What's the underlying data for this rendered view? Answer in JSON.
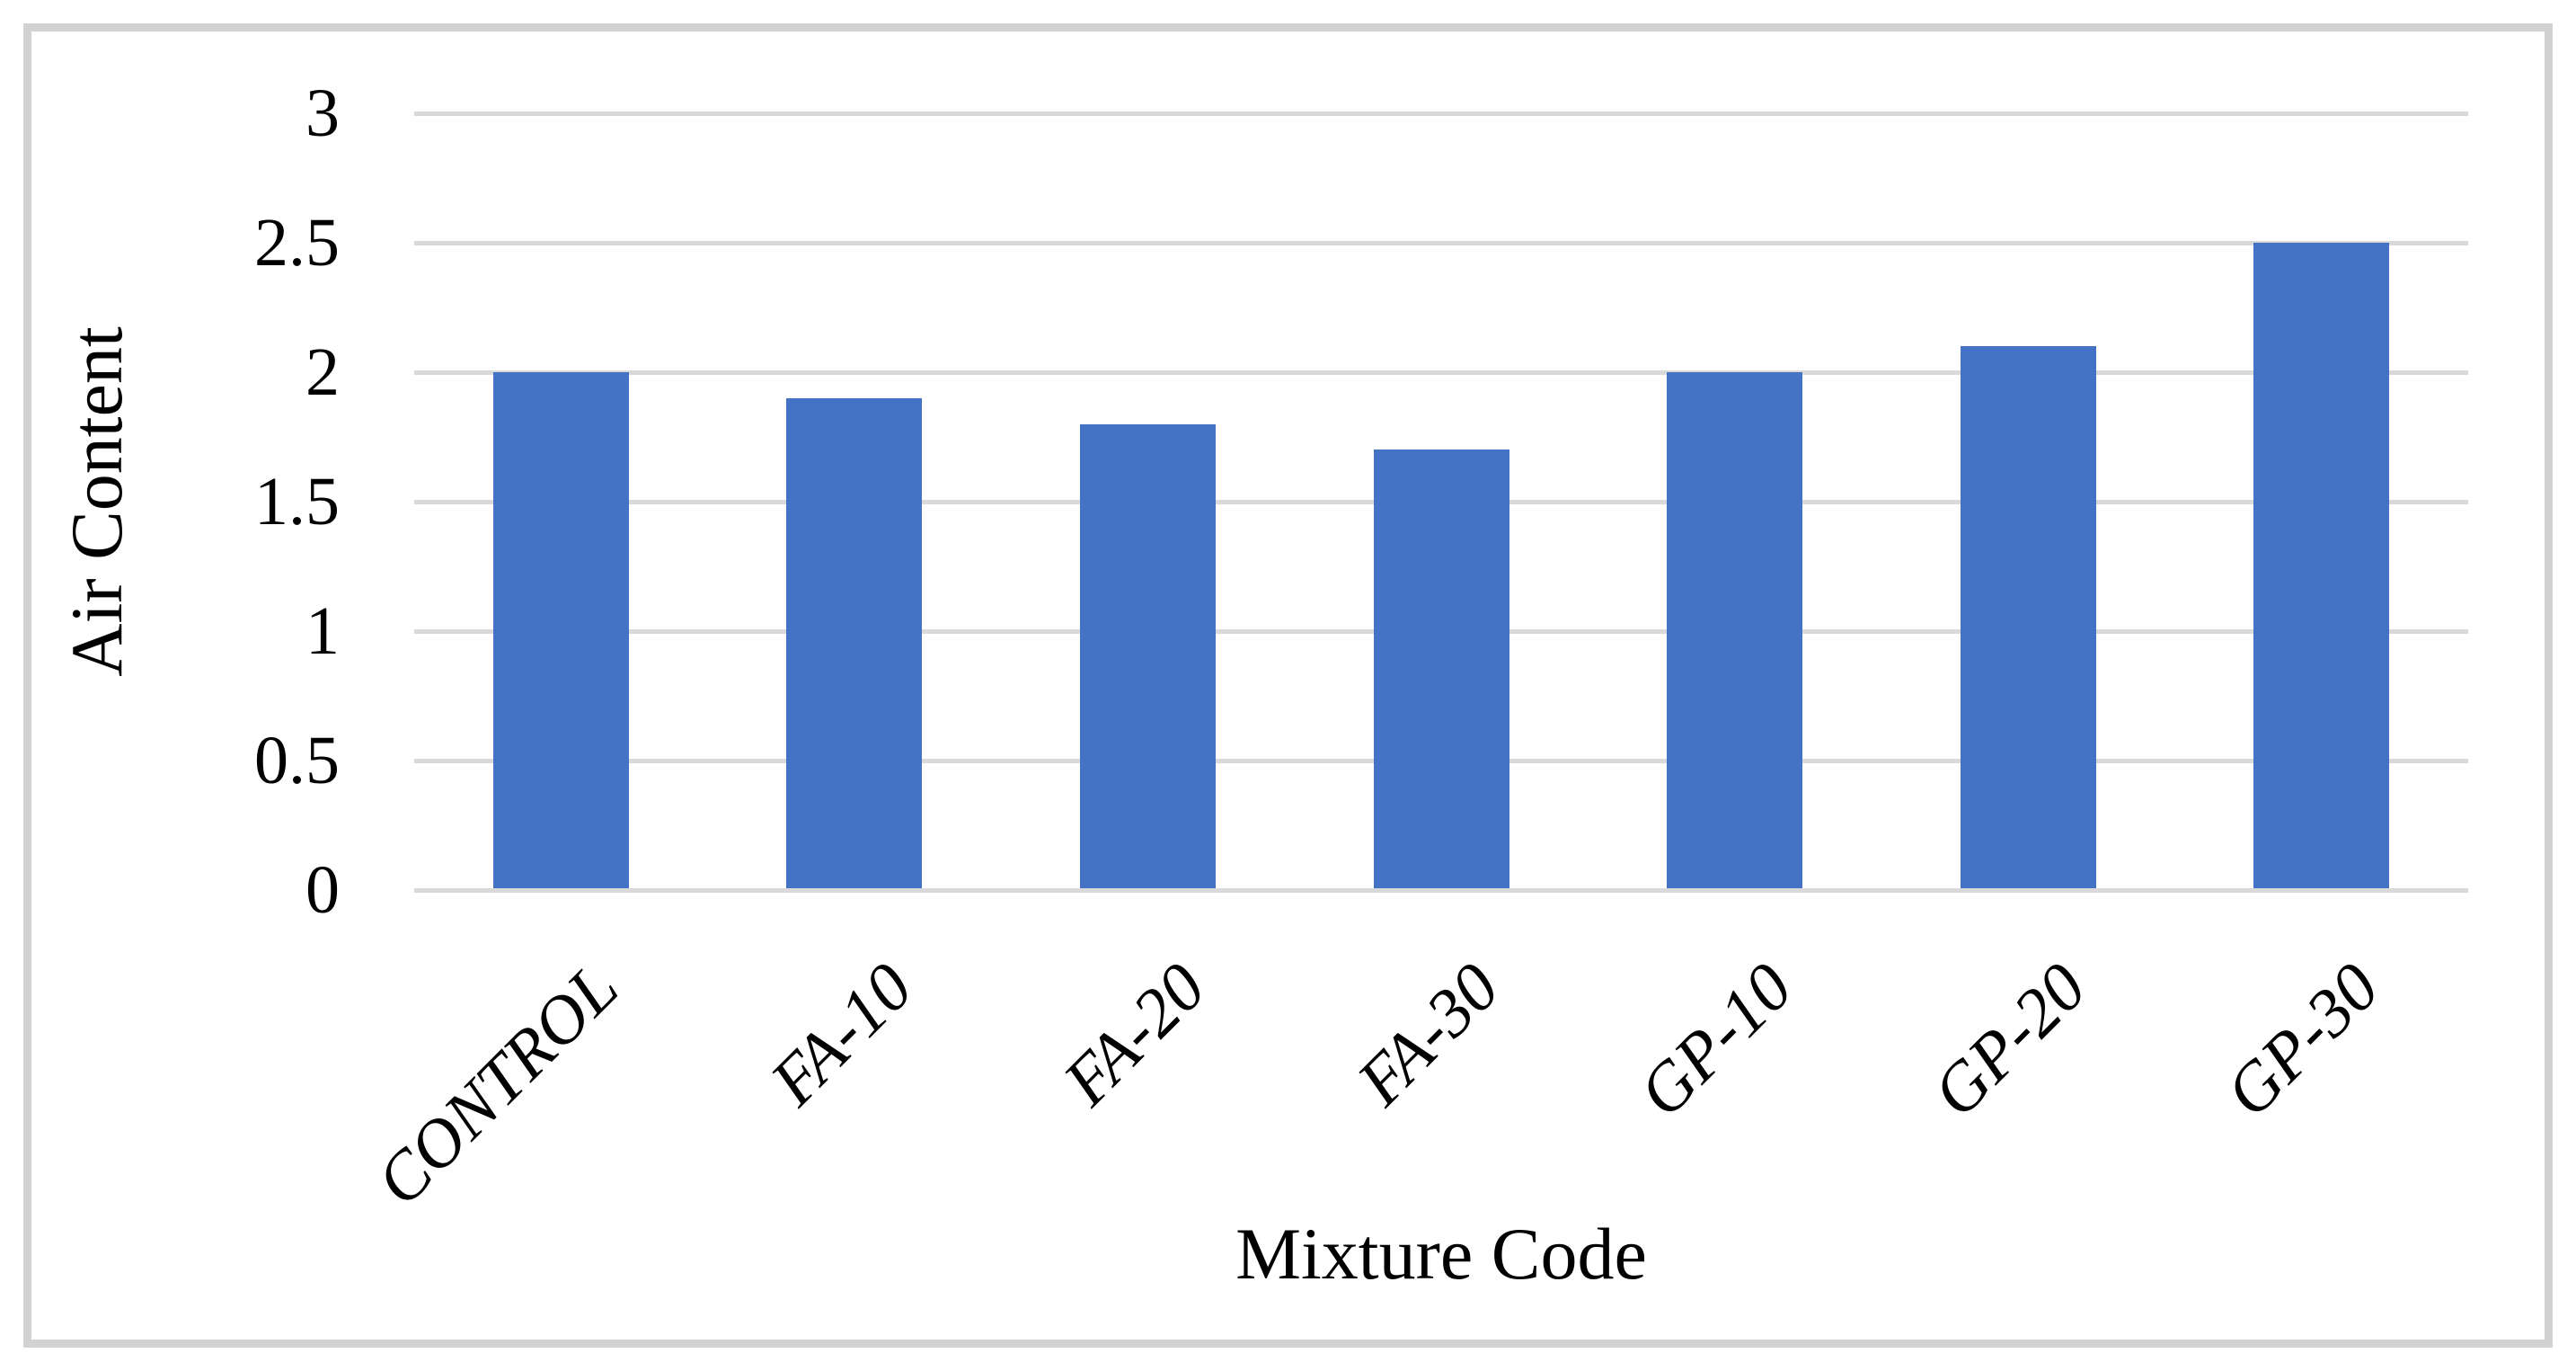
{
  "chart_data": {
    "type": "bar",
    "title": "",
    "categories": [
      "CONTROL",
      "FA-10",
      "FA-20",
      "FA-30",
      "GP-10",
      "GP-20",
      "GP-30"
    ],
    "values": [
      2.0,
      1.9,
      1.8,
      1.7,
      2.0,
      2.1,
      2.5
    ],
    "xlabel": "Mixture Code",
    "ylabel": "Air Content",
    "ylim": [
      0,
      3
    ],
    "ytick_step": 0.5,
    "ytick_labels": [
      "0",
      "0.5",
      "1",
      "1.5",
      "2",
      "2.5",
      "3"
    ],
    "grid": "horizontal-only",
    "legend_position": "none",
    "colors": {
      "bar": "#4472C4",
      "gridline": "#D9D9D9",
      "frame": "#D2D2D2",
      "text": "#000000",
      "background": "#FFFFFF"
    }
  }
}
